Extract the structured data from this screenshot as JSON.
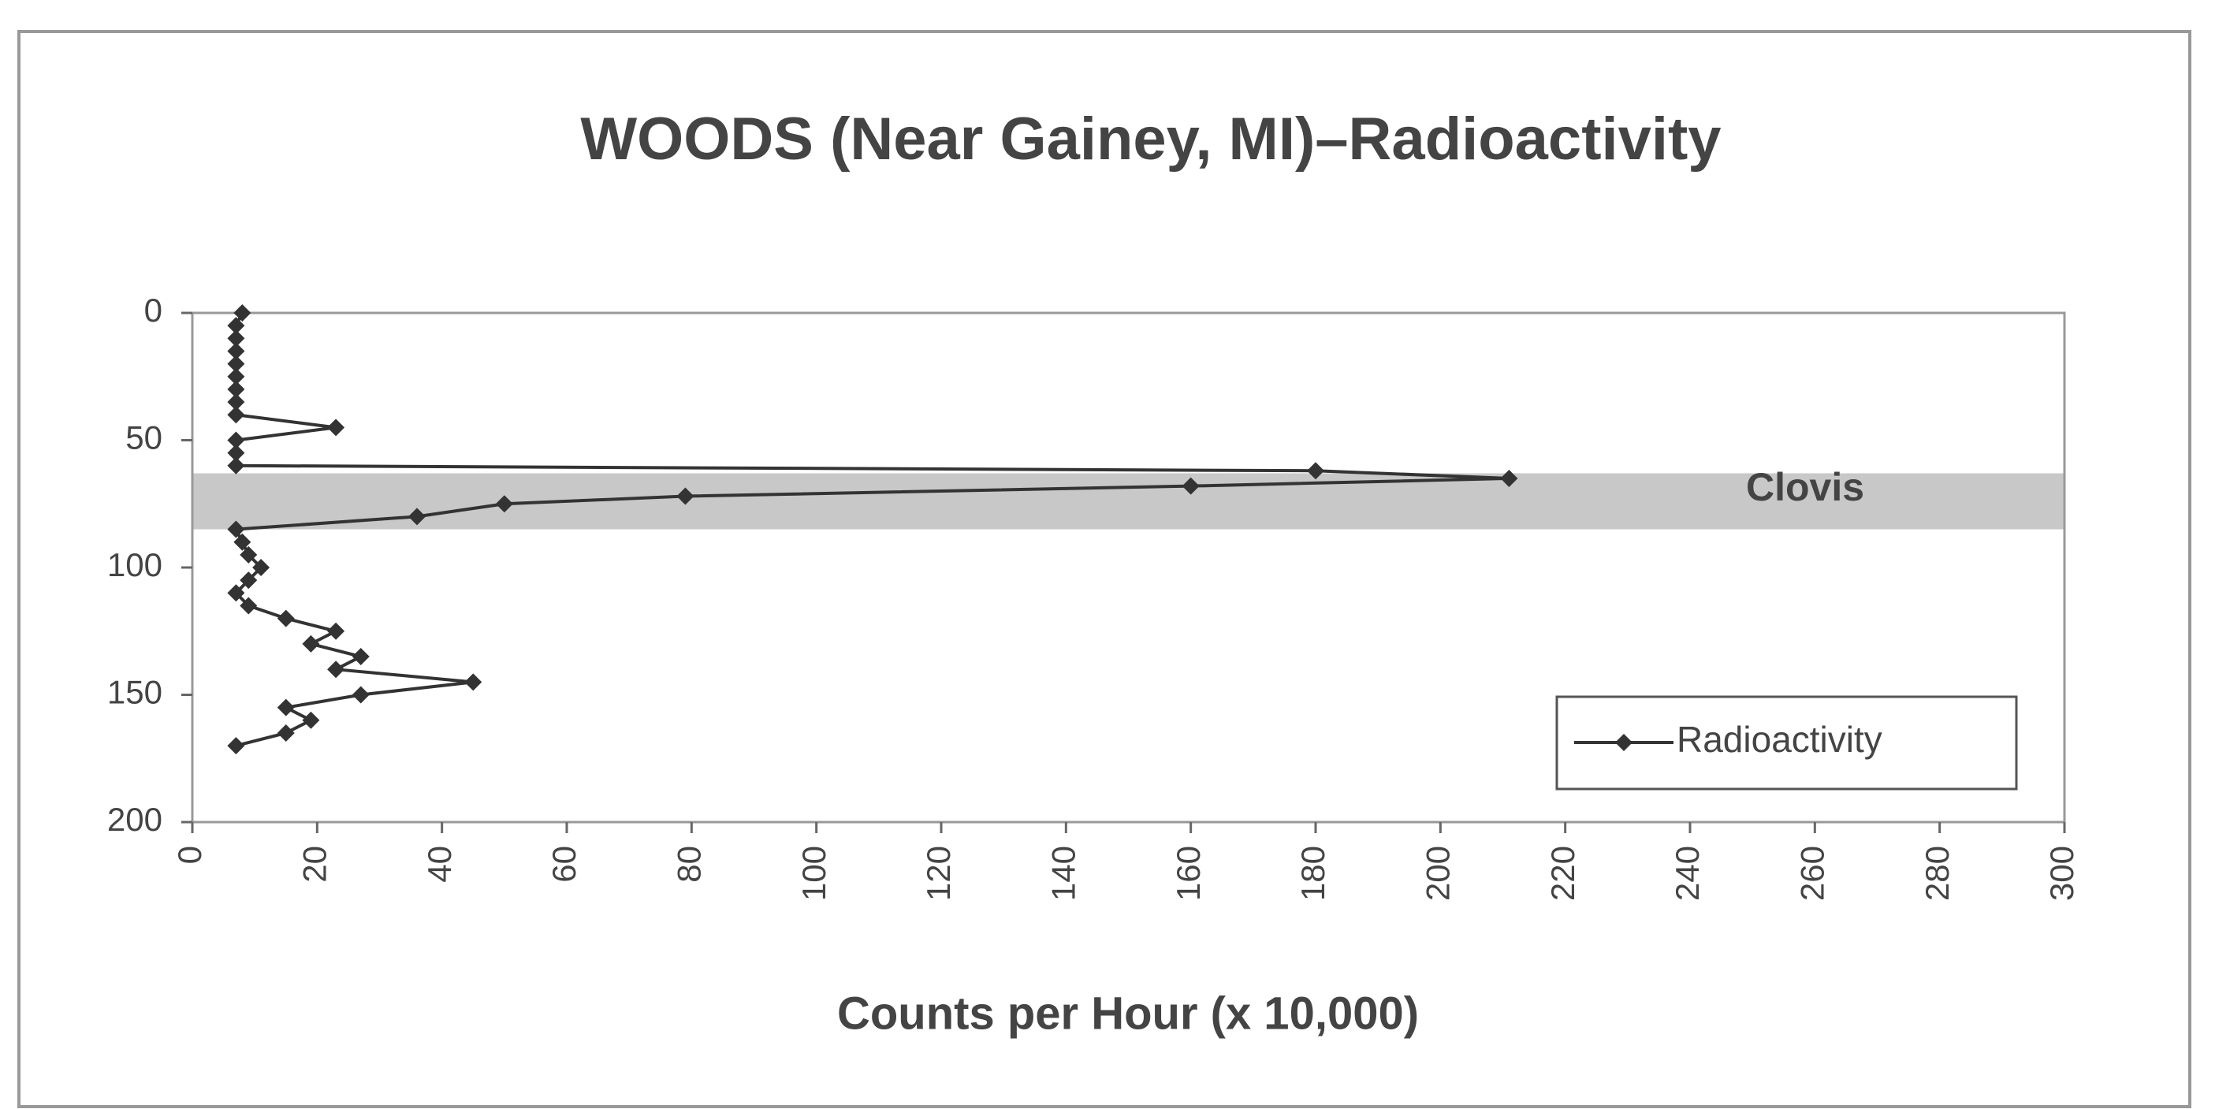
{
  "chart_data": {
    "type": "line",
    "title": "WOODS (Near Gainey, MI)–Radioactivity",
    "x_label": "Counts per Hour (x 10,000)",
    "y": [
      0,
      5,
      10,
      15,
      20,
      25,
      30,
      35,
      40,
      45,
      50,
      55,
      60,
      62,
      65,
      68,
      72,
      75,
      80,
      85,
      90,
      95,
      100,
      105,
      110,
      115,
      120,
      125,
      130,
      135,
      140,
      145,
      150,
      155,
      160,
      165,
      170
    ],
    "series": [
      {
        "name": "Radioactivity",
        "color": "#333333",
        "values": [
          8,
          7,
          7,
          7,
          7,
          7,
          7,
          7,
          7,
          23,
          7,
          7,
          7,
          180,
          211,
          160,
          79,
          50,
          36,
          7,
          8,
          9,
          11,
          9,
          7,
          9,
          15,
          23,
          19,
          27,
          23,
          45,
          27,
          15,
          19,
          15,
          7
        ]
      }
    ],
    "xlim": [
      0,
      300
    ],
    "xticks": [
      0,
      20,
      40,
      60,
      80,
      100,
      120,
      140,
      160,
      180,
      200,
      220,
      240,
      260,
      280,
      300
    ],
    "ylim": [
      0,
      200
    ],
    "yticks": [
      0,
      50,
      100,
      150,
      200
    ],
    "y_inverted": true,
    "band": {
      "label": "Clovis",
      "range": [
        63,
        85
      ],
      "color": "#c8c8c8"
    },
    "legend": "lower right",
    "grid": false
  }
}
